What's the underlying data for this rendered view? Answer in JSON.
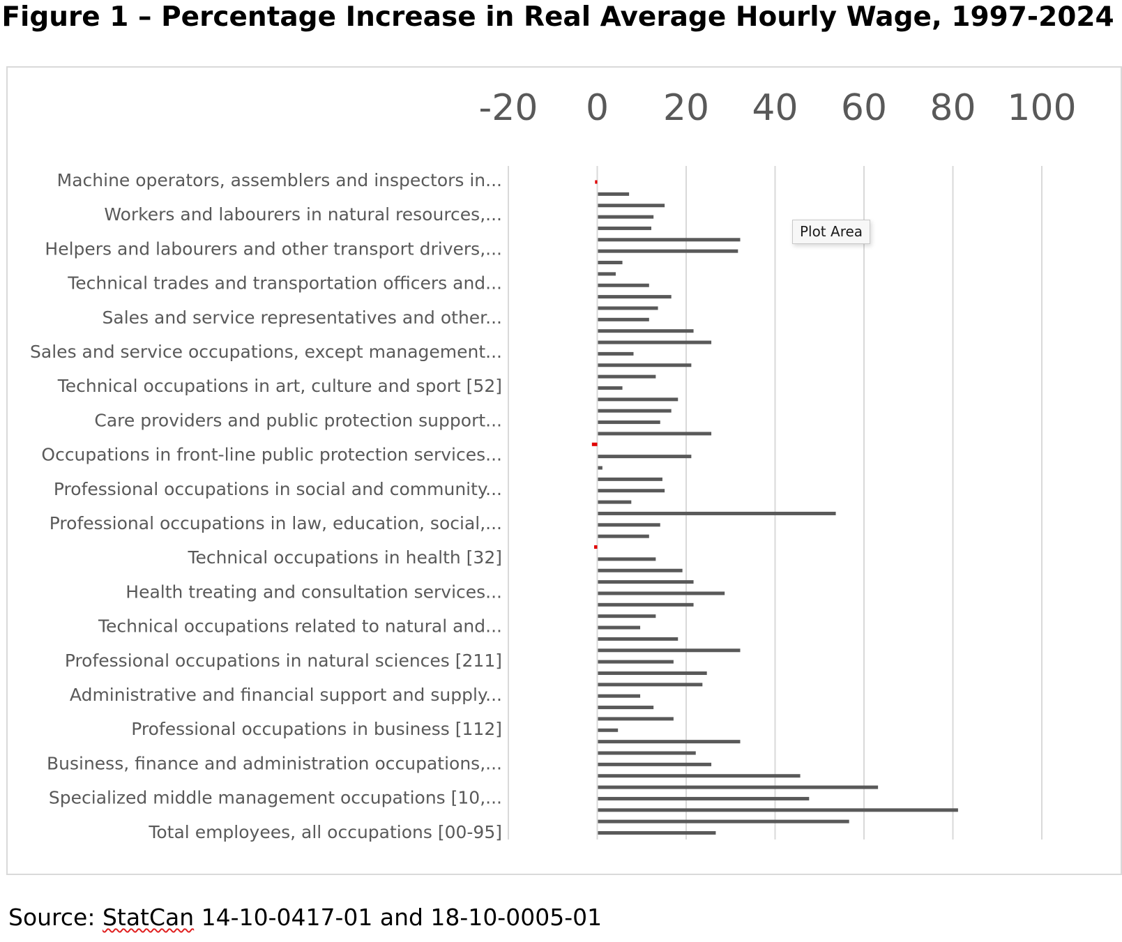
{
  "figure": {
    "title": "Figure 1 – Percentage Increase in Real Average Hourly Wage, 1997-2024"
  },
  "tooltip": {
    "label": "Plot Area"
  },
  "source": {
    "prefix": "Source:  ",
    "link_text": "StatCan",
    "suffix": " 14-10-0417-01 and 18-10-0005-01"
  },
  "colors": {
    "bar": "#595959",
    "negative_marker": "#e00000",
    "gridline": "#d9d9d9",
    "axis_text": "#595959"
  },
  "chart_data": {
    "type": "bar",
    "orientation": "horizontal",
    "title": "Figure 1 – Percentage Increase in Real Average Hourly Wage, 1997-2024",
    "xlabel": "",
    "ylabel": "",
    "xlim": [
      -20,
      100
    ],
    "xticks": [
      -20,
      0,
      20,
      40,
      60,
      80,
      100
    ],
    "grid": true,
    "legend": "none",
    "visible_category_labels": [
      "Machine operators, assemblers and inspectors in...",
      "Workers and labourers in natural resources,...",
      "Helpers and labourers and other transport drivers,...",
      "Technical trades and transportation officers and...",
      "Sales and service representatives and other...",
      "Sales and service occupations, except management...",
      "Technical occupations in art, culture and sport [52]",
      "Care providers and public protection support...",
      "Occupations in front-line public protection services...",
      "Professional occupations in social and community...",
      "Professional occupations in law, education, social,...",
      "Technical occupations in health [32]",
      "Health treating and consultation services...",
      "Technical occupations related to natural and...",
      "Professional occupations in natural sciences [211]",
      "Administrative and financial support and supply...",
      "Professional occupations in business [112]",
      "Business, finance and administration occupations,...",
      "Specialized middle management occupations [10,...",
      "Total employees, all occupations [00-95]"
    ],
    "values": [
      -0.5,
      7,
      15,
      12.5,
      12,
      32,
      31.5,
      5.5,
      4,
      11.5,
      16.5,
      13.5,
      11.5,
      21.5,
      25.5,
      8,
      21,
      13,
      5.5,
      18,
      16.5,
      14,
      25.5,
      -1.2,
      21,
      1,
      14.5,
      15,
      7.5,
      53.5,
      14,
      11.5,
      -0.7,
      13,
      19,
      21.5,
      28.5,
      21.5,
      13,
      9.5,
      18,
      32,
      17,
      24.5,
      23.5,
      9.5,
      12.5,
      17,
      4.5,
      32,
      22,
      25.5,
      45.5,
      63,
      47.5,
      81,
      56.5,
      26.5
    ]
  }
}
